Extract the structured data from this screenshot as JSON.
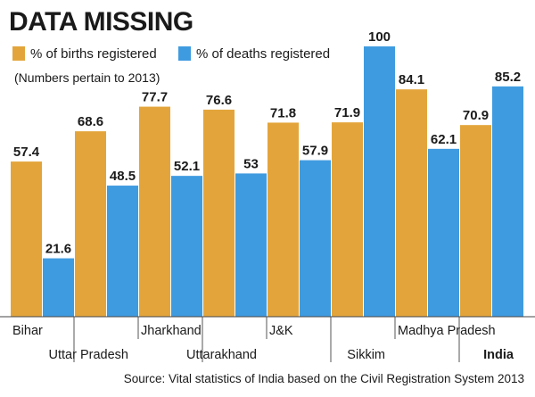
{
  "chart_data": {
    "type": "bar",
    "title": "DATA MISSING",
    "note": "(Numbers pertain to 2013)",
    "source": "Source: Vital statistics of India based on the Civil Registration System 2013",
    "categories": [
      "Bihar",
      "Uttar Pradesh",
      "Jharkhand",
      "Uttarakhand",
      "J&K",
      "Sikkim",
      "Madhya Pradesh",
      "India"
    ],
    "highlight_category": "India",
    "series": [
      {
        "name": "% of births registered",
        "color": "#e3a53b",
        "values": [
          57.4,
          68.6,
          77.7,
          76.6,
          71.8,
          71.9,
          84.1,
          70.9
        ]
      },
      {
        "name": "% of deaths registered",
        "color": "#3f9be0",
        "values": [
          21.6,
          48.5,
          52.1,
          53,
          57.9,
          100,
          62.1,
          85.2
        ]
      }
    ],
    "ylim": [
      0,
      100
    ],
    "grid": false,
    "legend": "top-left"
  }
}
